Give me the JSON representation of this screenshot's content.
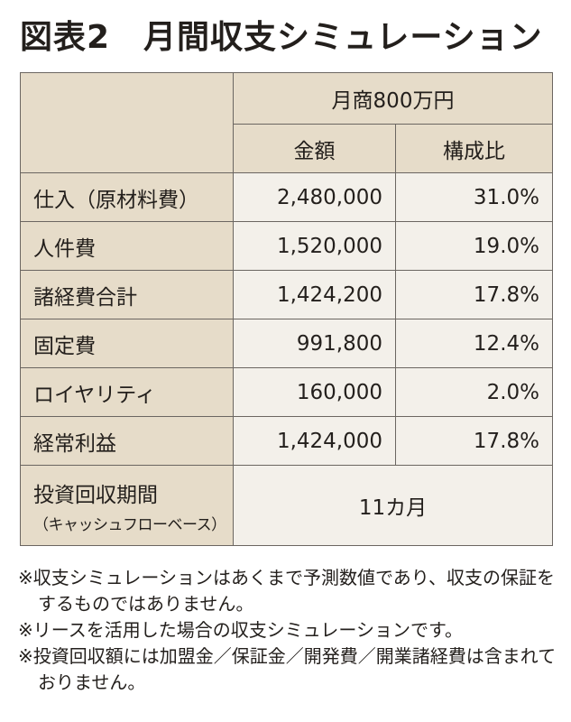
{
  "header": {
    "title": "図表2　月間収支シミュレーション"
  },
  "table": {
    "group_header": "月商800万円",
    "columns": [
      "金額",
      "構成比"
    ],
    "rows": [
      [
        "仕入（原材料費）",
        "2,480,000",
        "31.0%"
      ],
      [
        "人件費",
        "1,520,000",
        "19.0%"
      ],
      [
        "諸経費合計",
        "1,424,200",
        "17.8%"
      ],
      [
        "固定費",
        "991,800",
        "12.4%"
      ],
      [
        "ロイヤリティ",
        "160,000",
        "2.0%"
      ],
      [
        "経常利益",
        "1,424,000",
        "17.8%"
      ]
    ],
    "payback": {
      "label": "投資回収期間",
      "sublabel": "（キャッシュフローベース）",
      "value": "11カ月"
    }
  },
  "notes": [
    "※収支シミュレーションはあくまで予測数値であり、収支の保証をするものではありません。",
    "※リースを活用した場合の収支シミュレーションです。",
    "※投資回収額には加盟金／保証金／開発費／開業諸経費は含まれておりません。"
  ]
}
